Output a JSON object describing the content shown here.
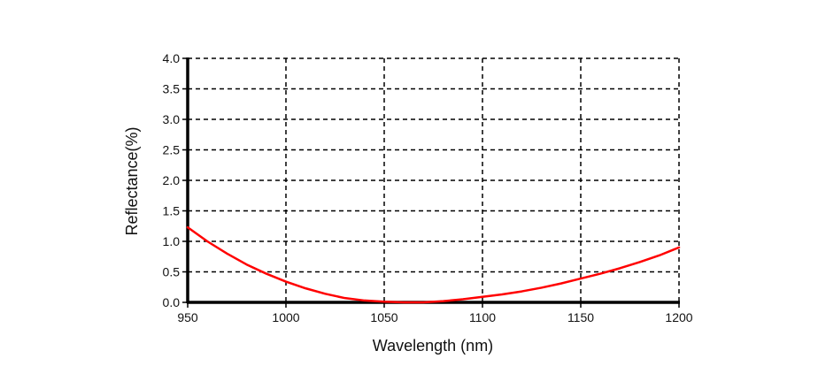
{
  "chart_data": {
    "type": "line",
    "title": "",
    "xlabel": "Wavelength (nm)",
    "ylabel": "Reflectance(%)",
    "xlim": [
      950,
      1200
    ],
    "ylim": [
      0.0,
      4.0
    ],
    "x_ticks": [
      "950",
      "1000",
      "1050",
      "1100",
      "1150",
      "1200"
    ],
    "y_ticks": [
      "0.0",
      "0.5",
      "1.0",
      "1.5",
      "2.0",
      "2.5",
      "3.0",
      "3.5",
      "4.0"
    ],
    "grid": true,
    "legend": "none",
    "series": [
      {
        "color": "#ff0000",
        "x": [
          950,
          960,
          970,
          980,
          990,
          1000,
          1010,
          1020,
          1030,
          1040,
          1050,
          1060,
          1070,
          1080,
          1090,
          1100,
          1110,
          1120,
          1130,
          1140,
          1150,
          1160,
          1170,
          1180,
          1190,
          1200
        ],
        "y": [
          1.23,
          1.0,
          0.8,
          0.62,
          0.47,
          0.34,
          0.23,
          0.14,
          0.07,
          0.03,
          0.01,
          0.0,
          0.0,
          0.02,
          0.05,
          0.09,
          0.13,
          0.18,
          0.24,
          0.31,
          0.39,
          0.47,
          0.56,
          0.66,
          0.77,
          0.9
        ]
      }
    ]
  }
}
